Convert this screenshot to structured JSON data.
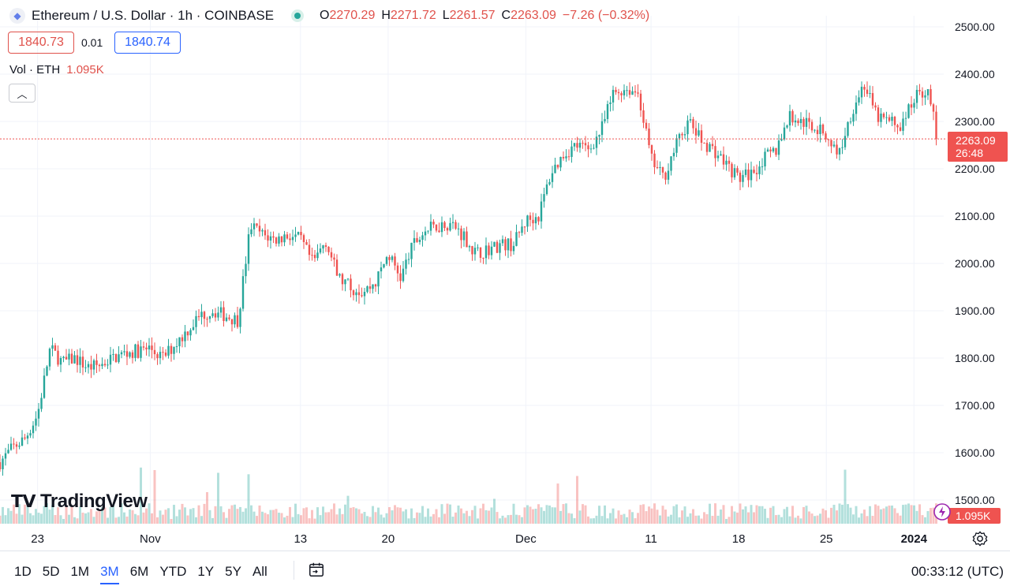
{
  "header": {
    "title": "Ethereum / U.S. Dollar · 1h · COINBASE",
    "ohlc": {
      "o_label": "O",
      "o": "2270.29",
      "h_label": "H",
      "h": "2271.72",
      "l_label": "L",
      "l": "2261.57",
      "c_label": "C",
      "c": "2263.09",
      "change": "−7.26 (−0.32%)"
    }
  },
  "trade": {
    "sell": "1840.73",
    "spread": "0.01",
    "buy": "1840.74"
  },
  "volume": {
    "label": "Vol · ETH",
    "value": "1.095K"
  },
  "logo": {
    "text": "TradingView"
  },
  "price_label": {
    "price": "2263.09",
    "countdown": "26:48"
  },
  "volume_label": "1.095K",
  "ranges": [
    "1D",
    "5D",
    "1M",
    "3M",
    "6M",
    "YTD",
    "1Y",
    "5Y",
    "All"
  ],
  "active_range": "3M",
  "clock": "00:33:12 (UTC)",
  "colors": {
    "up": "#26a69a",
    "down": "#ef5350",
    "accent": "#2962ff",
    "price_label": "#ef5350"
  },
  "icons": [
    "ethereum-icon",
    "market-open-icon",
    "chevron-up-icon",
    "calendar-range-icon",
    "gear-icon",
    "flash-icon"
  ],
  "chart_data": {
    "type": "candlestick",
    "symbol": "ETHUSD",
    "interval": "1h",
    "ylim": [
      1450,
      2525
    ],
    "y_ticks": [
      1500,
      1600,
      1700,
      1800,
      1900,
      2000,
      2100,
      2200,
      2300,
      2400,
      2500
    ],
    "y_tick_labels": [
      "1500.00",
      "1600.00",
      "1700.00",
      "1800.00",
      "1900.00",
      "2000.00",
      "2100.00",
      "2200.00",
      "2300.00",
      "2400.00",
      "2500.00"
    ],
    "x_tick_labels": [
      "23",
      "Nov",
      "13",
      "20",
      "Dec",
      "11",
      "18",
      "25",
      "2024"
    ],
    "x_tick_dates": [
      "2023-10-23",
      "2023-11-01",
      "2023-11-13",
      "2023-11-20",
      "2023-12-01",
      "2023-12-11",
      "2023-12-18",
      "2023-12-25",
      "2024-01-01"
    ],
    "x_start": "2023-10-20",
    "x_end": "2024-01-03",
    "last_price": 2263.09,
    "price_path": [
      [
        "2023-10-20",
        1580
      ],
      [
        "2023-10-21",
        1610
      ],
      [
        "2023-10-22",
        1630
      ],
      [
        "2023-10-23",
        1680
      ],
      [
        "2023-10-24",
        1820
      ],
      [
        "2023-10-25",
        1790
      ],
      [
        "2023-10-26",
        1800
      ],
      [
        "2023-10-27",
        1780
      ],
      [
        "2023-10-28",
        1785
      ],
      [
        "2023-10-29",
        1800
      ],
      [
        "2023-10-30",
        1810
      ],
      [
        "2023-10-31",
        1815
      ],
      [
        "2023-11-01",
        1820
      ],
      [
        "2023-11-02",
        1800
      ],
      [
        "2023-11-03",
        1830
      ],
      [
        "2023-11-04",
        1860
      ],
      [
        "2023-11-05",
        1890
      ],
      [
        "2023-11-06",
        1900
      ],
      [
        "2023-11-07",
        1890
      ],
      [
        "2023-11-08",
        1880
      ],
      [
        "2023-11-09",
        2080
      ],
      [
        "2023-11-10",
        2060
      ],
      [
        "2023-11-11",
        2050
      ],
      [
        "2023-11-12",
        2060
      ],
      [
        "2023-11-13",
        2050
      ],
      [
        "2023-11-14",
        2000
      ],
      [
        "2023-11-15",
        2050
      ],
      [
        "2023-11-16",
        1970
      ],
      [
        "2023-11-17",
        1950
      ],
      [
        "2023-11-18",
        1940
      ],
      [
        "2023-11-19",
        1960
      ],
      [
        "2023-11-20",
        2020
      ],
      [
        "2023-11-21",
        1970
      ],
      [
        "2023-11-22",
        2040
      ],
      [
        "2023-11-23",
        2070
      ],
      [
        "2023-11-24",
        2080
      ],
      [
        "2023-11-25",
        2085
      ],
      [
        "2023-11-26",
        2060
      ],
      [
        "2023-11-27",
        2020
      ],
      [
        "2023-11-28",
        2030
      ],
      [
        "2023-11-29",
        2040
      ],
      [
        "2023-11-30",
        2040
      ],
      [
        "2023-12-01",
        2090
      ],
      [
        "2023-12-02",
        2100
      ],
      [
        "2023-12-03",
        2190
      ],
      [
        "2023-12-04",
        2230
      ],
      [
        "2023-12-05",
        2250
      ],
      [
        "2023-12-06",
        2240
      ],
      [
        "2023-12-07",
        2280
      ],
      [
        "2023-12-08",
        2360
      ],
      [
        "2023-12-09",
        2370
      ],
      [
        "2023-12-10",
        2360
      ],
      [
        "2023-12-11",
        2220
      ],
      [
        "2023-12-12",
        2180
      ],
      [
        "2023-12-13",
        2250
      ],
      [
        "2023-12-14",
        2300
      ],
      [
        "2023-12-15",
        2260
      ],
      [
        "2023-12-16",
        2240
      ],
      [
        "2023-12-17",
        2210
      ],
      [
        "2023-12-18",
        2180
      ],
      [
        "2023-12-19",
        2190
      ],
      [
        "2023-12-20",
        2220
      ],
      [
        "2023-12-21",
        2240
      ],
      [
        "2023-12-22",
        2310
      ],
      [
        "2023-12-23",
        2300
      ],
      [
        "2023-12-24",
        2290
      ],
      [
        "2023-12-25",
        2270
      ],
      [
        "2023-12-26",
        2230
      ],
      [
        "2023-12-27",
        2320
      ],
      [
        "2023-12-28",
        2380
      ],
      [
        "2023-12-29",
        2310
      ],
      [
        "2023-12-30",
        2300
      ],
      [
        "2023-12-31",
        2290
      ],
      [
        "2024-01-01",
        2350
      ],
      [
        "2024-01-02",
        2370
      ],
      [
        "2024-01-03",
        2263
      ]
    ]
  }
}
